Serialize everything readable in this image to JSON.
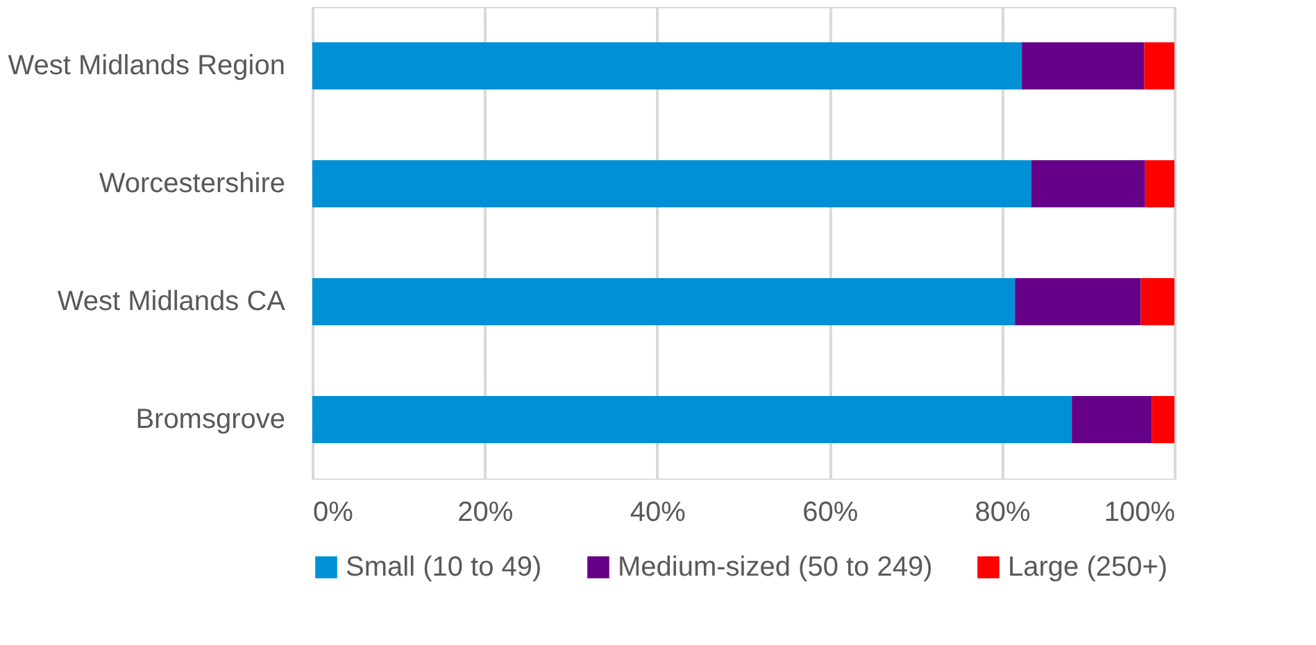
{
  "chart_data": {
    "type": "bar",
    "orientation": "horizontal",
    "stacked": true,
    "categories": [
      "West Midlands Region",
      "Worcestershire",
      "West Midlands CA",
      "Bromsgrove"
    ],
    "series": [
      {
        "name": "Small (10 to 49)",
        "color": "#0090d6",
        "values": [
          82.3,
          83.4,
          81.5,
          88.1
        ]
      },
      {
        "name": "Medium-sized (50 to 249)",
        "color": "#660088",
        "values": [
          14.2,
          13.2,
          14.6,
          9.3
        ]
      },
      {
        "name": "Large (250+)",
        "color": "#ff0000",
        "values": [
          3.5,
          3.4,
          3.9,
          2.6
        ]
      }
    ],
    "xlim": [
      0,
      100
    ],
    "xticks": [
      {
        "value": 0,
        "label": "0%"
      },
      {
        "value": 20,
        "label": "20%"
      },
      {
        "value": 40,
        "label": "40%"
      },
      {
        "value": 60,
        "label": "60%"
      },
      {
        "value": 80,
        "label": "80%"
      },
      {
        "value": 100,
        "label": "100%"
      }
    ],
    "grid": "x",
    "legend": "bottom"
  }
}
